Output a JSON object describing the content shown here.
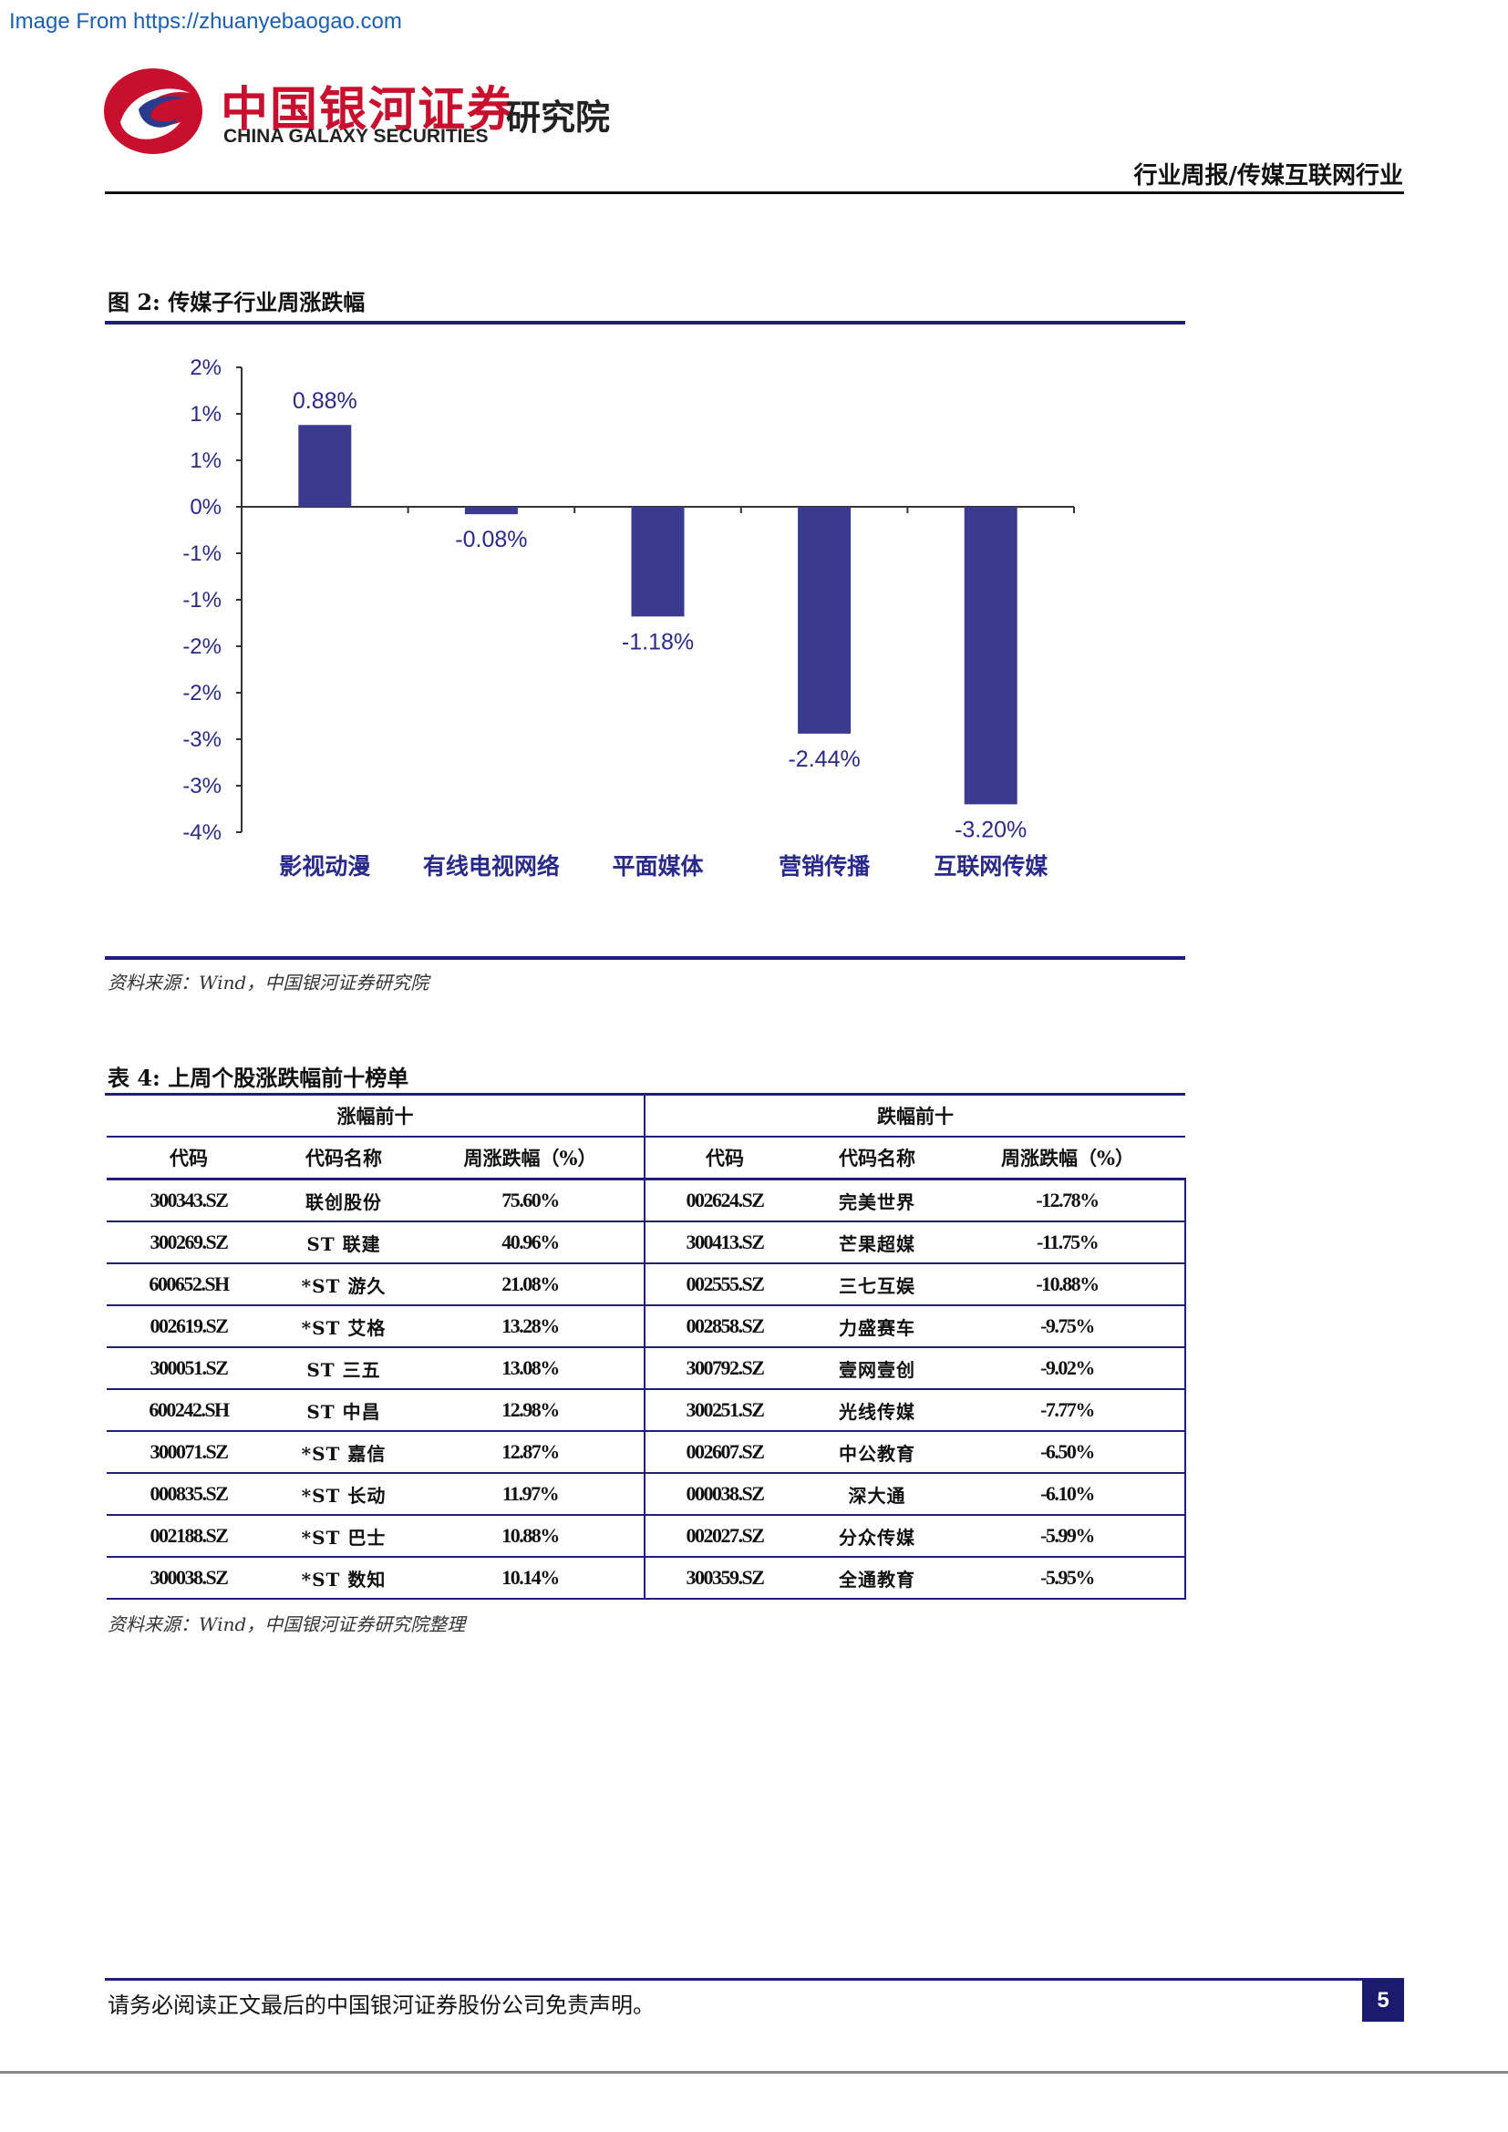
{
  "watermark": "Image From https://zhuanyebaogao.com",
  "header": {
    "company_cn": "中国银河证券",
    "company_en": "CHINA GALAXY SECURITIES",
    "institute": "研究院",
    "report_type": "行业周报/传媒互联网行业",
    "logo_icon": "galaxy-logo-icon"
  },
  "figure": {
    "title": "图 2: 传媒子行业周涨跌幅",
    "source": "资料来源：Wind，中国银河证券研究院"
  },
  "chart_data": {
    "type": "bar",
    "title": "",
    "xlabel": "",
    "ylabel": "",
    "categories": [
      "影视动漫",
      "有线电视网络",
      "平面媒体",
      "营销传播",
      "互联网传媒"
    ],
    "values": [
      0.88,
      -0.08,
      -1.18,
      -2.44,
      -3.2
    ],
    "data_labels": [
      "0.88%",
      "-0.08%",
      "-1.18%",
      "-2.44%",
      "-3.20%"
    ],
    "ylim": [
      -3.5,
      1.5
    ],
    "ytick_values": [
      1.5,
      1.0,
      0.5,
      0.0,
      -0.5,
      -1.0,
      -1.5,
      -2.0,
      -2.5,
      -3.0,
      -3.5
    ],
    "ytick_labels": [
      "2%",
      "1%",
      "1%",
      "0%",
      "-1%",
      "-1%",
      "-2%",
      "-2%",
      "-3%",
      "-3%",
      "-4%"
    ],
    "grid": false,
    "legend": "none",
    "bar_color": "#3a3a91",
    "text_color": "#2a2a8a"
  },
  "table": {
    "title": "表 4: 上周个股涨跌幅前十榜单",
    "group_left": "涨幅前十",
    "group_right": "跌幅前十",
    "columns": [
      "代码",
      "代码名称",
      "周涨跌幅（%）",
      "代码",
      "代码名称",
      "周涨跌幅（%）"
    ],
    "rows": [
      [
        "300343.SZ",
        "联创股份",
        "75.60%",
        "002624.SZ",
        "完美世界",
        "-12.78%"
      ],
      [
        "300269.SZ",
        "ST 联建",
        "40.96%",
        "300413.SZ",
        "芒果超媒",
        "-11.75%"
      ],
      [
        "600652.SH",
        "*ST 游久",
        "21.08%",
        "002555.SZ",
        "三七互娱",
        "-10.88%"
      ],
      [
        "002619.SZ",
        "*ST 艾格",
        "13.28%",
        "002858.SZ",
        "力盛赛车",
        "-9.75%"
      ],
      [
        "300051.SZ",
        "ST 三五",
        "13.08%",
        "300792.SZ",
        "壹网壹创",
        "-9.02%"
      ],
      [
        "600242.SH",
        "ST 中昌",
        "12.98%",
        "300251.SZ",
        "光线传媒",
        "-7.77%"
      ],
      [
        "300071.SZ",
        "*ST 嘉信",
        "12.87%",
        "002607.SZ",
        "中公教育",
        "-6.50%"
      ],
      [
        "000835.SZ",
        "*ST 长动",
        "11.97%",
        "000038.SZ",
        "深大通",
        "-6.10%"
      ],
      [
        "002188.SZ",
        "*ST 巴士",
        "10.88%",
        "002027.SZ",
        "分众传媒",
        "-5.99%"
      ],
      [
        "300038.SZ",
        "*ST 数知",
        "10.14%",
        "300359.SZ",
        "全通教育",
        "-5.95%"
      ]
    ],
    "source": "资料来源：Wind，中国银河证券研究院整理"
  },
  "footer": {
    "disclaimer": "请务必阅读正文最后的中国银河证券股份公司免责声明。",
    "page_number": "5"
  }
}
